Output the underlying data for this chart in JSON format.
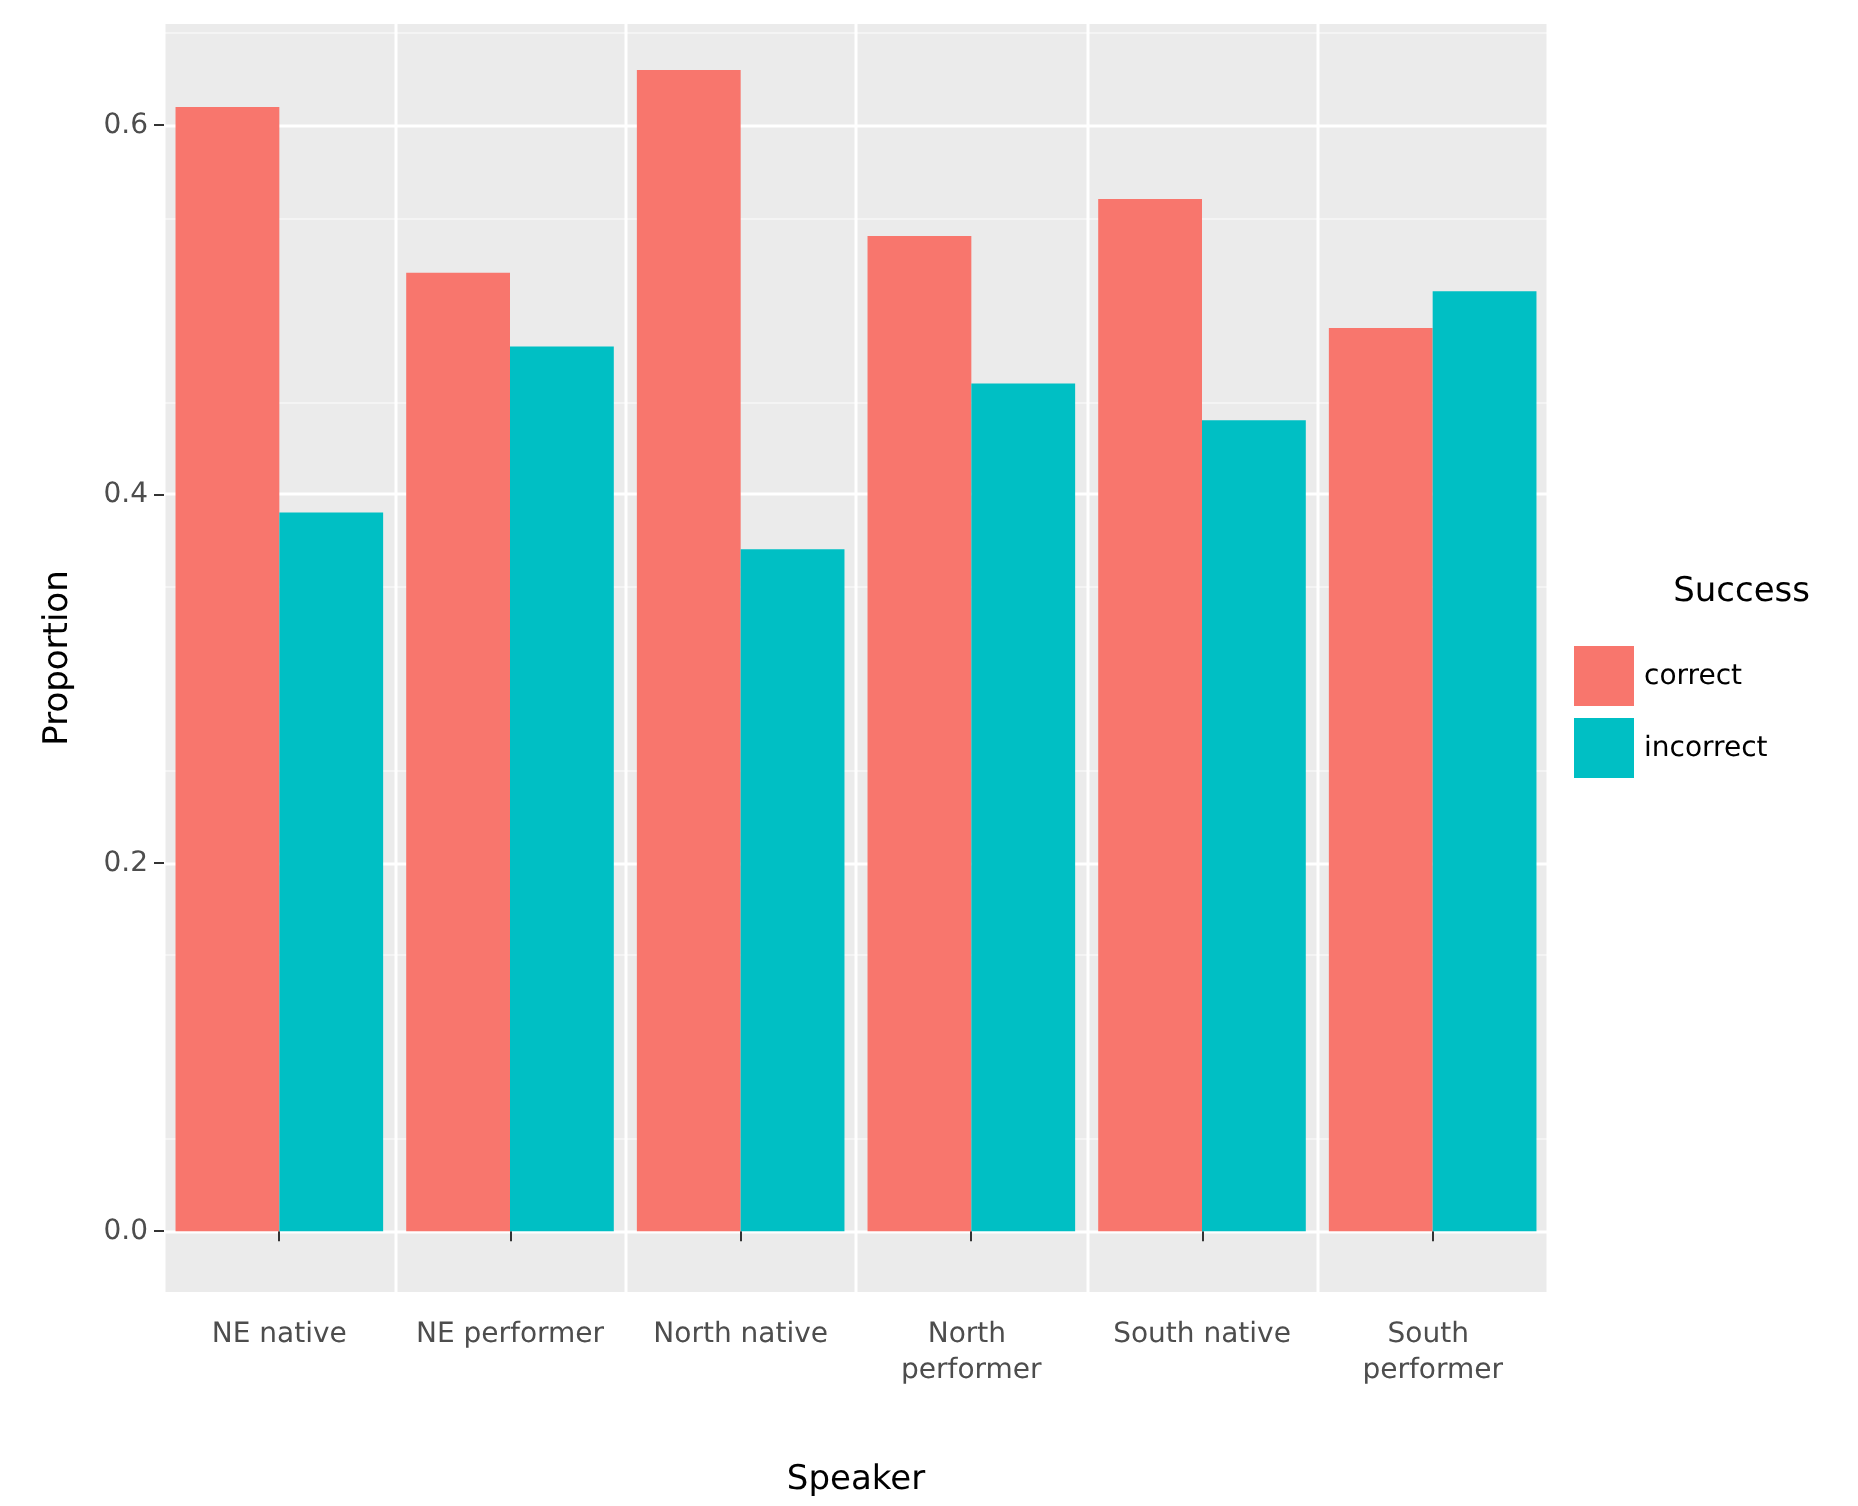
{
  "chart_data": {
    "type": "bar",
    "xlabel": "Speaker",
    "ylabel": "Proportion",
    "legend_title": "Success",
    "categories": [
      "NE native",
      "NE performer",
      "North native",
      "North performer",
      "South native",
      "South performer"
    ],
    "series": [
      {
        "name": "correct",
        "color": "#f8766d",
        "values": [
          0.61,
          0.52,
          0.63,
          0.54,
          0.56,
          0.49
        ]
      },
      {
        "name": "incorrect",
        "color": "#00bfc4",
        "values": [
          0.39,
          0.48,
          0.37,
          0.46,
          0.44,
          0.51
        ]
      }
    ],
    "ylim": [
      -0.033,
      0.655
    ],
    "yticks": [
      {
        "value": 0,
        "label": "0.0"
      },
      {
        "value": 0.2,
        "label": "0.2"
      },
      {
        "value": 0.4,
        "label": "0.4"
      },
      {
        "value": 0.6,
        "label": "0.6"
      }
    ],
    "grid": true,
    "legend": "right"
  }
}
